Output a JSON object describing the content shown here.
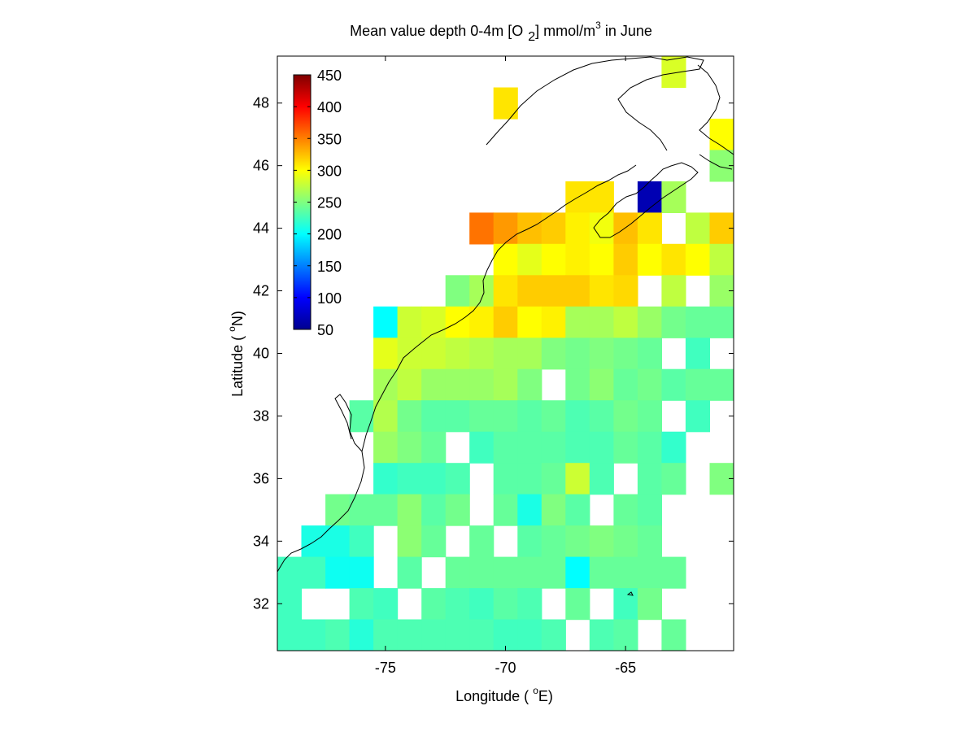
{
  "title": {
    "prefix": "Mean value depth 0-4m [O",
    "sub": "2",
    "mid": "] mmol/m",
    "sup": "3",
    "suffix": " in June"
  },
  "axes": {
    "xlabel_prefix": "Longitude ( ",
    "xlabel_sup": "o",
    "xlabel_suffix": "E)",
    "ylabel_prefix": "Latitude ( ",
    "ylabel_sup": "o",
    "ylabel_suffix": "N)",
    "xlim": [
      -79.5,
      -60.5
    ],
    "ylim": [
      30.5,
      49.5
    ],
    "xticks": [
      "-75",
      "-70",
      "-65"
    ],
    "yticks": [
      "32",
      "34",
      "36",
      "38",
      "40",
      "42",
      "44",
      "46",
      "48"
    ]
  },
  "colorbar": {
    "ticks": [
      "450",
      "400",
      "350",
      "300",
      "250",
      "200",
      "150",
      "100",
      "50"
    ],
    "range": [
      50,
      450
    ],
    "colormap": "jet",
    "placement": "top-left inside plot"
  },
  "chart_data": {
    "type": "heatmap",
    "variable": "O2",
    "units": "mmol/m3",
    "depth": "0-4m",
    "month": "June",
    "cell_size_deg": 1,
    "lon_centers": [
      -79,
      -78,
      -77,
      -76,
      -75,
      -74,
      -73,
      -72,
      -71,
      -70,
      -69,
      -68,
      -67,
      -66,
      -65,
      -64,
      -63,
      -62,
      -61
    ],
    "rows": [
      {
        "lat": 49,
        "values": [
          null,
          null,
          null,
          null,
          null,
          null,
          null,
          null,
          null,
          null,
          null,
          null,
          null,
          null,
          null,
          null,
          285,
          null,
          null
        ]
      },
      {
        "lat": 48,
        "values": [
          null,
          null,
          null,
          null,
          null,
          null,
          null,
          null,
          null,
          310,
          null,
          null,
          null,
          null,
          null,
          null,
          null,
          null,
          null
        ]
      },
      {
        "lat": 47,
        "values": [
          null,
          null,
          null,
          null,
          null,
          null,
          null,
          null,
          null,
          null,
          null,
          null,
          null,
          null,
          null,
          null,
          null,
          null,
          300
        ]
      },
      {
        "lat": 46,
        "values": [
          null,
          null,
          null,
          null,
          null,
          null,
          null,
          null,
          null,
          null,
          null,
          null,
          null,
          null,
          null,
          null,
          null,
          null,
          255
        ]
      },
      {
        "lat": 45,
        "values": [
          null,
          null,
          null,
          null,
          null,
          null,
          null,
          null,
          null,
          null,
          null,
          null,
          310,
          310,
          null,
          70,
          265,
          null,
          null
        ]
      },
      {
        "lat": 44,
        "values": [
          null,
          null,
          null,
          null,
          null,
          null,
          null,
          null,
          355,
          340,
          325,
          320,
          305,
          295,
          325,
          310,
          null,
          275,
          320
        ]
      },
      {
        "lat": 43,
        "values": [
          null,
          null,
          null,
          null,
          null,
          null,
          null,
          null,
          null,
          300,
          290,
          300,
          305,
          300,
          320,
          300,
          310,
          300,
          275
        ]
      },
      {
        "lat": 42,
        "values": [
          null,
          null,
          null,
          null,
          null,
          null,
          null,
          250,
          265,
          310,
          320,
          320,
          320,
          310,
          315,
          null,
          275,
          null,
          260
        ]
      },
      {
        "lat": 41,
        "values": [
          null,
          null,
          null,
          null,
          200,
          280,
          285,
          300,
          305,
          320,
          300,
          305,
          265,
          265,
          275,
          260,
          245,
          240,
          240
        ]
      },
      {
        "lat": 40,
        "values": [
          null,
          null,
          null,
          null,
          290,
          280,
          280,
          275,
          270,
          265,
          265,
          250,
          245,
          250,
          245,
          240,
          null,
          225,
          null
        ]
      },
      {
        "lat": 39,
        "values": [
          null,
          null,
          null,
          null,
          265,
          275,
          260,
          260,
          260,
          265,
          250,
          null,
          245,
          255,
          240,
          245,
          235,
          240,
          240
        ]
      },
      {
        "lat": 38,
        "values": [
          null,
          null,
          null,
          235,
          270,
          245,
          235,
          235,
          240,
          240,
          235,
          240,
          230,
          235,
          245,
          240,
          null,
          225,
          null
        ]
      },
      {
        "lat": 37,
        "values": [
          null,
          null,
          null,
          null,
          260,
          250,
          240,
          null,
          225,
          235,
          235,
          235,
          230,
          230,
          240,
          235,
          220,
          null,
          null
        ]
      },
      {
        "lat": 36,
        "values": [
          null,
          null,
          null,
          null,
          220,
          225,
          225,
          230,
          null,
          235,
          235,
          240,
          280,
          230,
          null,
          235,
          240,
          null,
          250
        ]
      },
      {
        "lat": 35,
        "values": [
          null,
          null,
          245,
          240,
          240,
          255,
          235,
          245,
          null,
          240,
          210,
          250,
          235,
          null,
          240,
          235,
          null,
          null,
          null
        ]
      },
      {
        "lat": 34,
        "values": [
          null,
          210,
          210,
          225,
          null,
          255,
          240,
          null,
          240,
          null,
          235,
          240,
          245,
          250,
          245,
          240,
          null,
          null,
          null
        ]
      },
      {
        "lat": 33,
        "values": [
          225,
          225,
          205,
          205,
          null,
          235,
          null,
          240,
          240,
          240,
          240,
          240,
          200,
          240,
          240,
          240,
          240,
          null,
          null
        ]
      },
      {
        "lat": 32,
        "values": [
          225,
          null,
          null,
          230,
          225,
          null,
          235,
          230,
          225,
          235,
          230,
          null,
          240,
          null,
          225,
          245,
          null,
          null,
          null
        ]
      },
      {
        "lat": 31,
        "values": [
          225,
          225,
          230,
          215,
          230,
          230,
          230,
          230,
          230,
          225,
          225,
          230,
          null,
          230,
          235,
          null,
          240,
          null,
          null
        ]
      }
    ]
  }
}
